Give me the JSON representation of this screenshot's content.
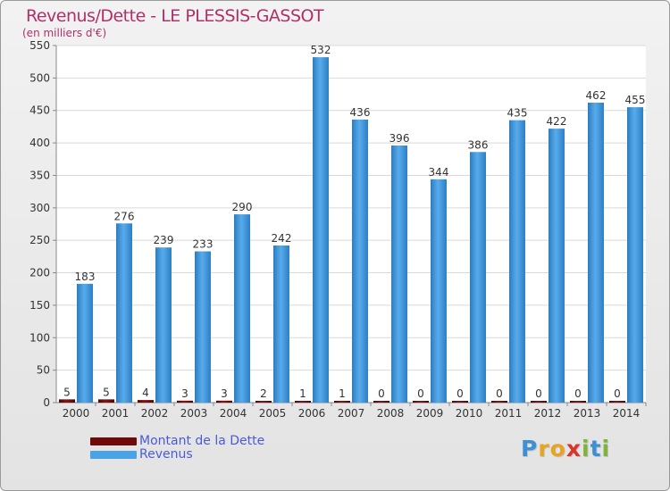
{
  "chart_data": {
    "type": "bar",
    "title": "Revenus/Dette - LE PLESSIS-GASSOT",
    "subtitle": "(en milliers d'€)",
    "categories": [
      "2000",
      "2001",
      "2002",
      "2003",
      "2004",
      "2005",
      "2006",
      "2007",
      "2008",
      "2009",
      "2010",
      "2011",
      "2012",
      "2013",
      "2014"
    ],
    "series": [
      {
        "name": "Montant de la Dette",
        "color": "#6e0a0a",
        "values": [
          5,
          5,
          4,
          3,
          3,
          2,
          1,
          1,
          0,
          0,
          0,
          0,
          0,
          0,
          0
        ]
      },
      {
        "name": "Revenus",
        "color": "#4aa3e6",
        "values": [
          183,
          276,
          239,
          233,
          290,
          242,
          532,
          436,
          396,
          344,
          386,
          435,
          422,
          462,
          455
        ]
      }
    ],
    "ylim": [
      0,
      550
    ],
    "yticks": [
      0,
      50,
      100,
      150,
      200,
      250,
      300,
      350,
      400,
      450,
      500,
      550
    ],
    "grid": true,
    "legend": "bottom-left"
  },
  "logo": {
    "letters": [
      "P",
      "r",
      "o",
      "x",
      "i",
      "t",
      "i"
    ],
    "colors": [
      "#3d8fd6",
      "#e7a321",
      "#e7a321",
      "#d8342a",
      "#7fb43c",
      "#3d8fd6",
      "#7fb43c"
    ]
  }
}
